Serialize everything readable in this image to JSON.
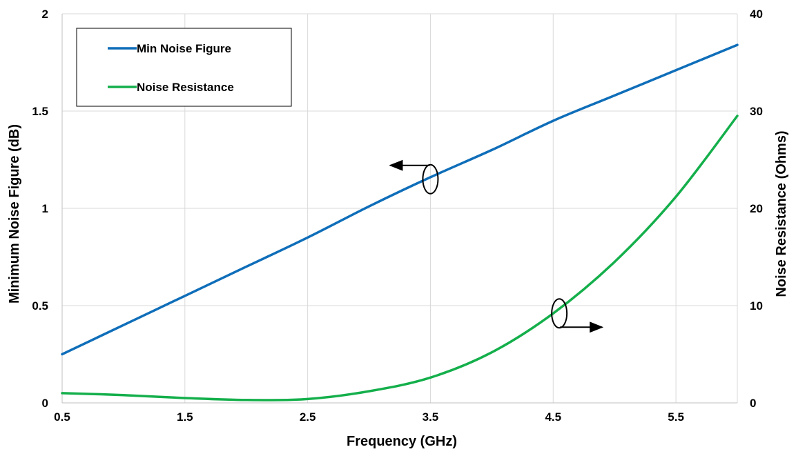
{
  "chart_data": {
    "type": "line",
    "xlabel": "Frequency (GHz)",
    "ylabel_left": "Minimum Noise Figure (dB)",
    "ylabel_right": "Noise Resistance (Ohms)",
    "xlim": [
      0.5,
      6.0
    ],
    "ylim_left": [
      0,
      2
    ],
    "ylim_right": [
      0,
      40
    ],
    "x_ticks": [
      "0.5",
      "1.5",
      "2.5",
      "3.5",
      "4.5",
      "5.5"
    ],
    "y_left_ticks": [
      "0",
      "0.5",
      "1",
      "1.5",
      "2"
    ],
    "y_right_ticks": [
      "0",
      "10",
      "20",
      "30",
      "40"
    ],
    "grid": true,
    "legend_position": "top-left",
    "series": [
      {
        "name": "Min Noise Figure",
        "axis": "left",
        "color": "#0F6EB9",
        "x": [
          0.5,
          1.0,
          1.5,
          2.0,
          2.5,
          3.0,
          3.5,
          4.0,
          4.5,
          5.0,
          5.5,
          6.0
        ],
        "y": [
          0.25,
          0.4,
          0.55,
          0.7,
          0.85,
          1.01,
          1.16,
          1.3,
          1.45,
          1.58,
          1.71,
          1.84
        ]
      },
      {
        "name": "Noise Resistance",
        "axis": "right",
        "color": "#14AF4B",
        "x": [
          0.5,
          1.0,
          1.5,
          2.0,
          2.5,
          3.0,
          3.5,
          4.0,
          4.5,
          5.0,
          5.5,
          6.0
        ],
        "y": [
          1.0,
          0.8,
          0.5,
          0.3,
          0.4,
          1.2,
          2.6,
          5.2,
          9.2,
          14.5,
          21.2,
          29.5
        ]
      }
    ],
    "annotations": [
      {
        "kind": "axis-indicator",
        "series": "Min Noise Figure",
        "points_to": "left",
        "x": 3.5,
        "y": 1.15
      },
      {
        "kind": "axis-indicator",
        "series": "Noise Resistance",
        "points_to": "right",
        "x": 4.55,
        "y": 9.2
      }
    ]
  }
}
